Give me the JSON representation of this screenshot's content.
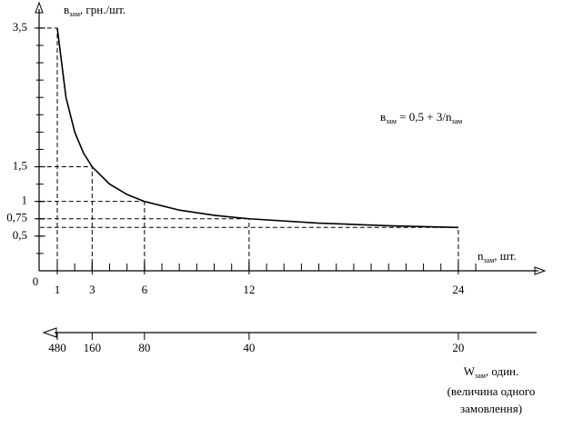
{
  "chart_data": {
    "type": "line",
    "x": [
      1,
      1.5,
      2,
      2.5,
      3,
      4,
      5,
      6,
      8,
      10,
      12,
      16,
      20,
      24
    ],
    "values": [
      3.5,
      2.5,
      2,
      1.7,
      1.5,
      1.25,
      1.1,
      1,
      0.875,
      0.8,
      0.75,
      0.6875,
      0.65,
      0.625
    ],
    "color": "#000000",
    "xlim": [
      0,
      28.75
    ],
    "ylim": [
      0,
      3.8
    ],
    "xticks": [
      1,
      3,
      6,
      12,
      24
    ],
    "yticks": [
      {
        "value": 0.5,
        "label": "0,5"
      },
      {
        "value": 0.75,
        "label": "0,75"
      },
      1,
      {
        "value": 1.5,
        "label": "1,5"
      },
      {
        "value": 3.5,
        "label": "3,5"
      }
    ],
    "x_minor_step": 1,
    "y_minor_step": 0.25,
    "origin_label": "0",
    "guides": [
      {
        "x": 1,
        "y": 3.5
      },
      {
        "x": 3,
        "y": 1.5
      },
      {
        "x": 6,
        "y": 1
      },
      {
        "x": 12,
        "y": 0.75
      },
      {
        "x": 24,
        "y": 0.625
      }
    ],
    "y_label": [
      "в",
      "зам",
      ", грн./шт."
    ],
    "x_label": [
      "n",
      "зам",
      ", шт."
    ],
    "formula": [
      "в",
      "зам",
      " = 0,5 + 3/n",
      "зам"
    ],
    "x2ticks": [
      {
        "value": 1,
        "label": "480"
      },
      {
        "value": 3,
        "label": "160"
      },
      {
        "value": 6,
        "label": "80"
      },
      {
        "value": 12,
        "label": "40"
      },
      {
        "value": 24,
        "label": "20"
      }
    ],
    "x2_label": [
      "W",
      "зам",
      ", один."
    ],
    "x2_note": [
      "(величина одного",
      "замовлення)"
    ]
  }
}
